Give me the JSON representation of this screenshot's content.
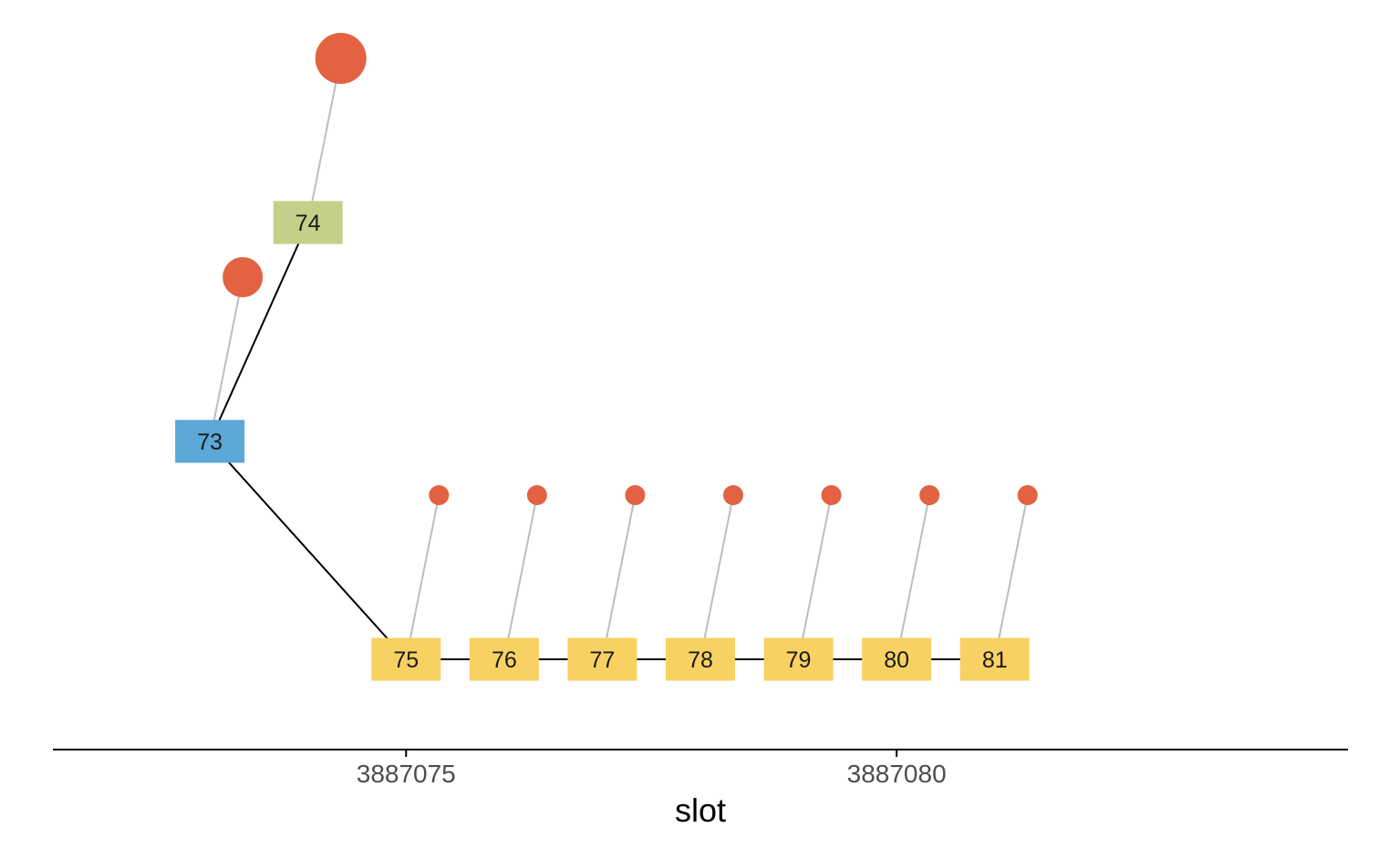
{
  "chart_data": {
    "type": "tree",
    "xlabel": "slot",
    "x_ticks": [
      3887075,
      3887080
    ],
    "x_range": [
      3887071.4,
      3887084.6
    ],
    "colors": {
      "root": "#5ba7d8",
      "branch": "#c4d089",
      "chain": "#f8d163",
      "vote": "#e26241",
      "vote_link": "#bdbdbd",
      "edge": "#000000",
      "axis": "#000000"
    },
    "blocks": [
      {
        "label": "73",
        "slot": 3887073,
        "level": 2,
        "group": "root",
        "parent": null
      },
      {
        "label": "74",
        "slot": 3887074,
        "level": 3,
        "group": "branch",
        "parent": "73"
      },
      {
        "label": "75",
        "slot": 3887075,
        "level": 0,
        "group": "chain",
        "parent": "73"
      },
      {
        "label": "76",
        "slot": 3887076,
        "level": 0,
        "group": "chain",
        "parent": "75"
      },
      {
        "label": "77",
        "slot": 3887077,
        "level": 0,
        "group": "chain",
        "parent": "76"
      },
      {
        "label": "78",
        "slot": 3887078,
        "level": 0,
        "group": "chain",
        "parent": "77"
      },
      {
        "label": "79",
        "slot": 3887079,
        "level": 0,
        "group": "chain",
        "parent": "78"
      },
      {
        "label": "80",
        "slot": 3887080,
        "level": 0,
        "group": "chain",
        "parent": "79"
      },
      {
        "label": "81",
        "slot": 3887081,
        "level": 0,
        "group": "chain",
        "parent": "80"
      }
    ],
    "votes": [
      {
        "block": "73",
        "size": 3
      },
      {
        "block": "74",
        "size": 4
      },
      {
        "block": "75",
        "size": 1
      },
      {
        "block": "76",
        "size": 1
      },
      {
        "block": "77",
        "size": 1
      },
      {
        "block": "78",
        "size": 1
      },
      {
        "block": "79",
        "size": 1
      },
      {
        "block": "80",
        "size": 1
      },
      {
        "block": "81",
        "size": 1
      }
    ]
  }
}
